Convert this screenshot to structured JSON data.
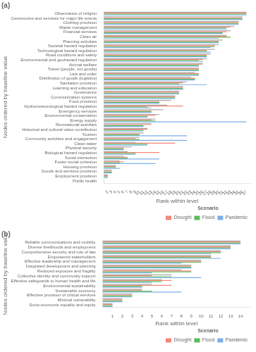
{
  "chart_data": [
    {
      "type": "bar",
      "orientation": "horizontal",
      "title": "(a)",
      "xlabel": "Rank within level",
      "ylabel": "Nodes ordered by baseline value",
      "categories": [
        "Observance of religion",
        "Ceremonies and services for major life events",
        "Clothing provision",
        "Waste management",
        "Financial services",
        "Clean air",
        "Planning activities",
        "Societal hazard regulation",
        "Technological hazard regulation",
        "Road conditions and safety",
        "Environmental and geohazard regulation",
        "Animal welfare",
        "Travel (people, not goods)",
        "Law and order",
        "Distribution of goods (logistics)",
        "Sanitation provision",
        "Learning and education",
        "Governance",
        "Communication systems",
        "Food provision",
        "Hydrometeorological hazard regulation",
        "Emergency services",
        "Environmental conservation",
        "Energy supply",
        "Recreational activities",
        "Historical and cultural value contribution",
        "Tourism",
        "Community activities and engagement",
        "Clean water",
        "Physical security",
        "Biological hazard regulation",
        "Social interaction",
        "Foster social cohesion",
        "Housing provision",
        "Goods and services provision",
        "Employment provision",
        "Public health"
      ],
      "series": [
        {
          "color": "#AAAAAA",
          "values": [
            37,
            36,
            35,
            34,
            33,
            32,
            31,
            30,
            29,
            28,
            27,
            26,
            25,
            24,
            23,
            22,
            21,
            20,
            19,
            18,
            17,
            16,
            15,
            14,
            13,
            12,
            11,
            10,
            9,
            8,
            7,
            6,
            5,
            4,
            3,
            2,
            1
          ]
        },
        {
          "name": "Drought",
          "color": "#F4877A",
          "values": [
            37,
            36,
            35,
            33,
            32,
            32,
            30,
            29,
            27,
            27,
            26,
            26,
            25,
            25,
            24,
            21,
            21,
            20,
            19,
            15,
            21,
            13,
            14,
            13,
            13,
            12,
            10,
            9,
            19,
            6,
            15,
            7,
            6,
            4,
            3,
            2,
            1
          ]
        },
        {
          "name": "Flood",
          "color": "#5BBD5A",
          "values": [
            37,
            36,
            35,
            32,
            31,
            33,
            30,
            29,
            27,
            27,
            25,
            25,
            25,
            25,
            24,
            20,
            21,
            20,
            19,
            15,
            12,
            13,
            12,
            14,
            11,
            11,
            10,
            10,
            12,
            6,
            9,
            7,
            5,
            4,
            3,
            2,
            1
          ]
        },
        {
          "name": "Pandemic",
          "color": "#7BAEE8",
          "values": [
            37,
            36,
            35,
            32,
            31,
            30,
            30,
            28,
            28,
            27,
            26,
            25,
            25,
            25,
            24,
            27,
            21,
            20,
            19,
            15,
            13,
            13,
            12,
            37,
            11,
            11,
            22,
            22,
            12,
            6,
            9,
            15,
            14,
            5,
            3,
            2,
            1
          ]
        }
      ],
      "xlim": [
        1,
        38
      ],
      "xticks": [
        2,
        3,
        4,
        5,
        6,
        7,
        8,
        9,
        10,
        11,
        12,
        13,
        14,
        15,
        16,
        17,
        18,
        19,
        20,
        21,
        22,
        23,
        24,
        25,
        26,
        27,
        28,
        29,
        30,
        31,
        32,
        33,
        34,
        35,
        36,
        37
      ],
      "grid": false,
      "legend": "lower right",
      "legend_title": "Scenario"
    },
    {
      "type": "bar",
      "orientation": "horizontal",
      "title": "(b)",
      "xlabel": "Rank within level",
      "ylabel": "Nodes ordered by baseline value",
      "categories": [
        "Reliable communications and mobility",
        "Diverse livelihoods and employment",
        "Comprehensive security and rule of law",
        "Empowered stakeholders",
        "Effective leadership and management",
        "Integrated development and planning",
        "Reduced exposure and fragility",
        "Collective identity and community support",
        "Effective safeguards to human health and life",
        "Environmental sustainability",
        "Sustainable economy",
        "Effective provision of critical services",
        "Minimal vulnerability",
        "Socio-economic equality and equity"
      ],
      "series": [
        {
          "color": "#AAAAAA",
          "values": [
            14,
            13,
            12,
            11,
            10,
            9,
            8,
            7,
            6,
            5,
            4,
            3,
            2,
            1
          ]
        },
        {
          "name": "Drought",
          "color": "#F4877A",
          "values": [
            14,
            13,
            12,
            11,
            10,
            9,
            9,
            5,
            7,
            7,
            4,
            3,
            2,
            1
          ]
        },
        {
          "name": "Flood",
          "color": "#5BBD5A",
          "values": [
            14,
            13,
            12,
            11,
            10,
            9,
            9,
            7,
            6,
            4,
            5,
            3,
            2,
            1
          ]
        },
        {
          "name": "Pandemic",
          "color": "#7BAEE8",
          "values": [
            14,
            13,
            11,
            12,
            8,
            9,
            5,
            10,
            5,
            4,
            8,
            3,
            2,
            1
          ]
        }
      ],
      "xlim": [
        0,
        15
      ],
      "xticks": [
        1,
        2,
        3,
        4,
        5,
        6,
        7,
        8,
        9,
        10,
        11,
        12,
        13,
        14
      ],
      "grid": false,
      "legend": "lower right",
      "legend_title": "Scenario"
    }
  ]
}
